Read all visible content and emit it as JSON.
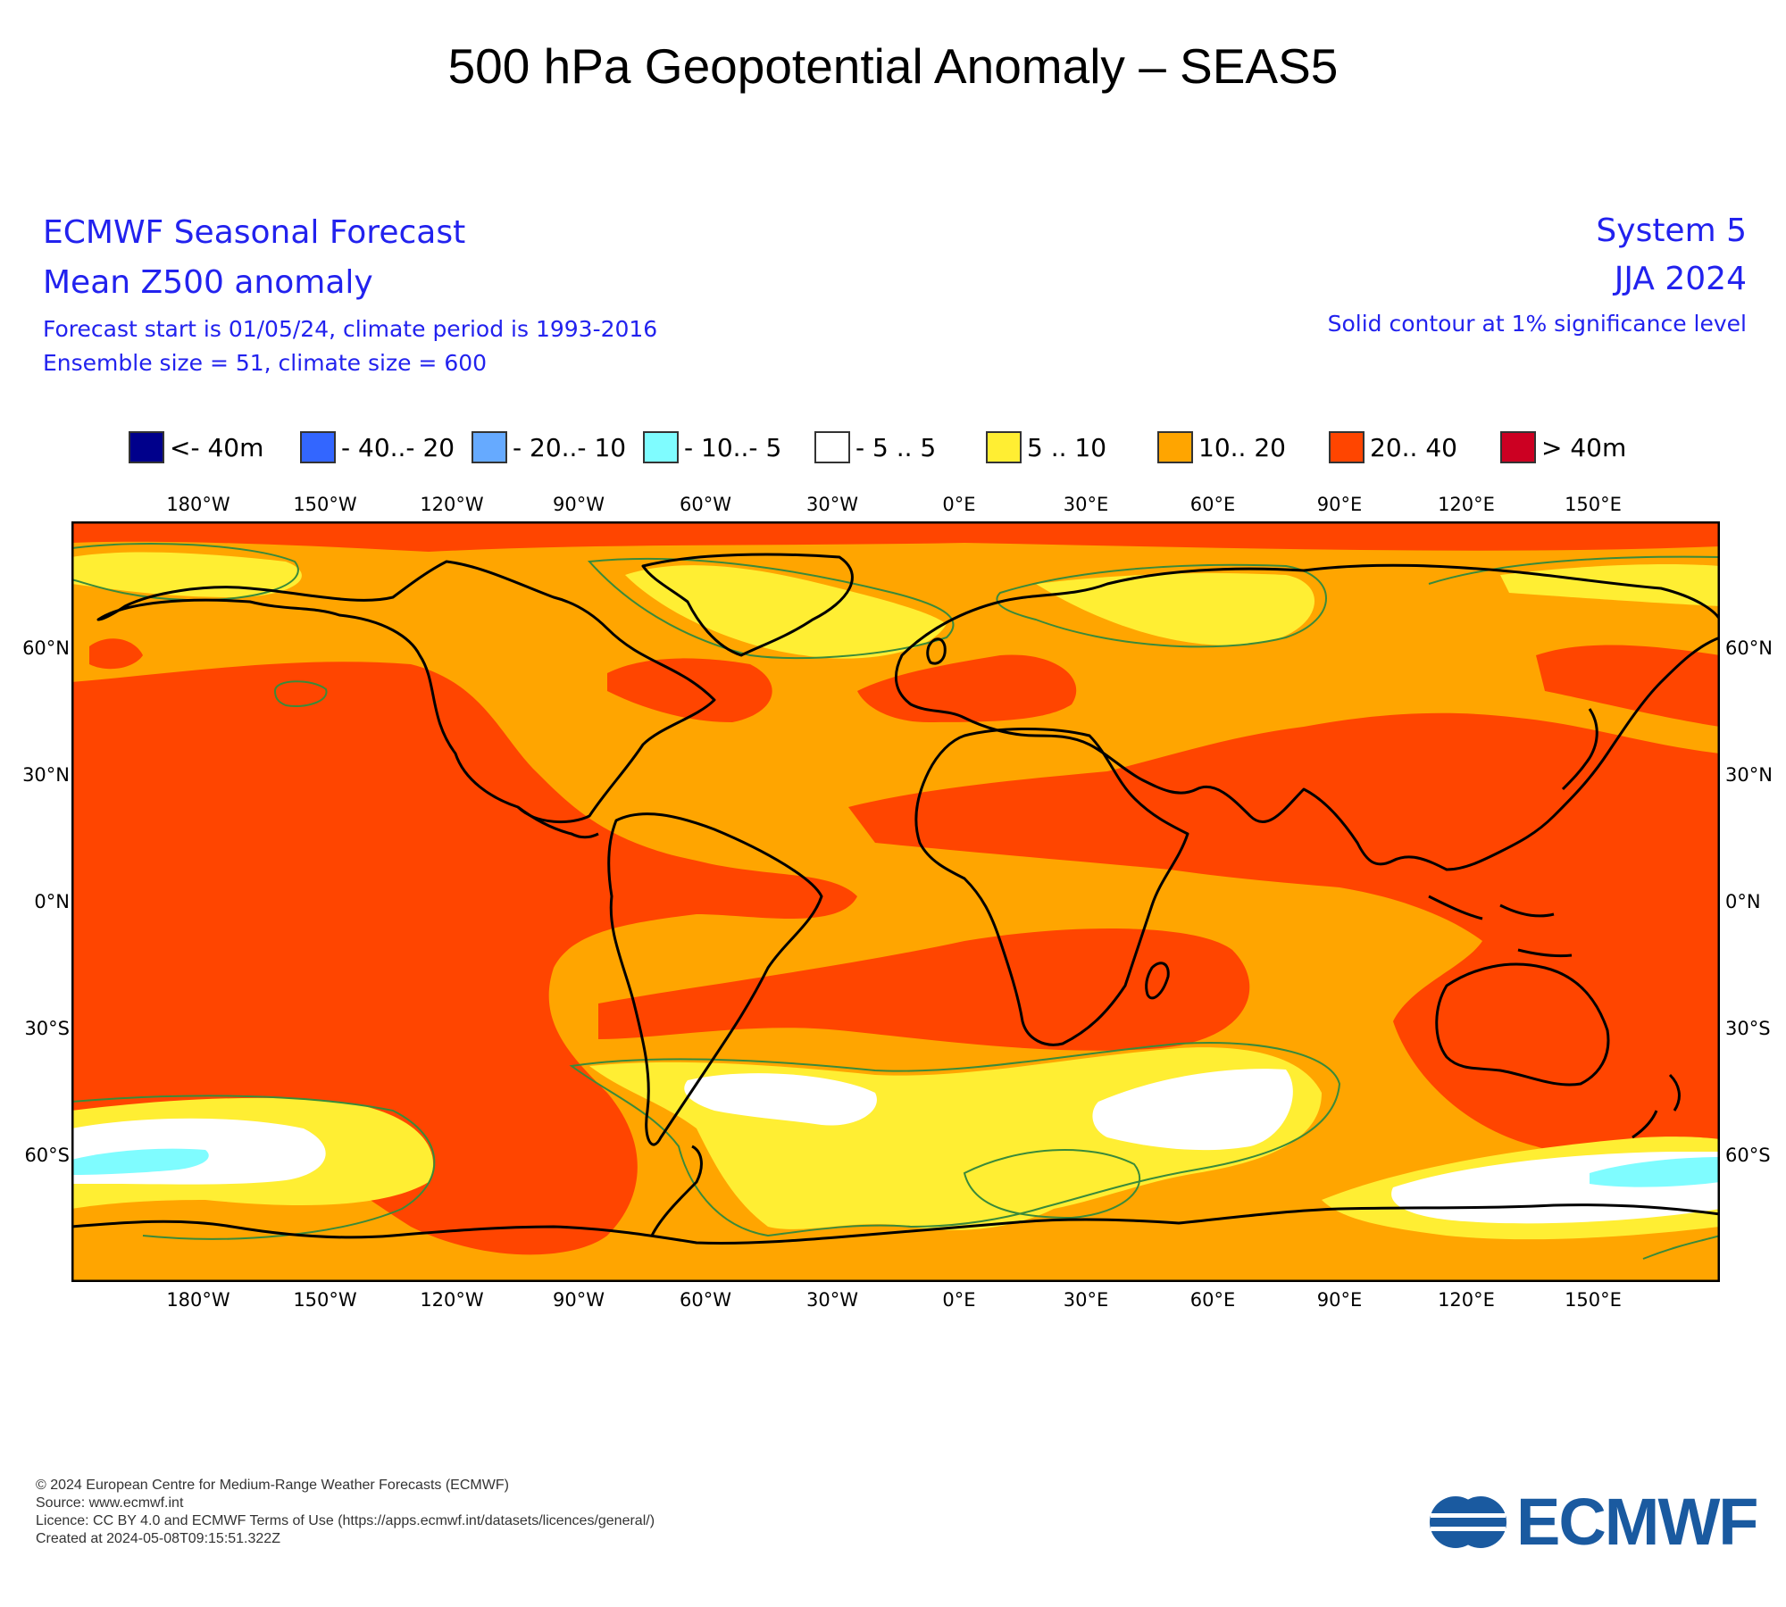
{
  "page_title": "500 hPa Geopotential Anomaly – SEAS5",
  "header": {
    "left_title": "ECMWF Seasonal Forecast",
    "left_subtitle": "Mean Z500 anomaly",
    "left_line1": "Forecast start is 01/05/24, climate period is 1993-2016",
    "left_line2": "Ensemble size = 51, climate size = 600",
    "right_title": "System 5",
    "right_subtitle": "JJA 2024",
    "right_line1": "Solid contour at 1% significance level"
  },
  "legend": {
    "items": [
      {
        "label": "<- 40m",
        "color": "#00008b"
      },
      {
        "label": "- 40..- 20",
        "color": "#3366ff"
      },
      {
        "label": "- 20..- 10",
        "color": "#66aaff"
      },
      {
        "label": "- 10..- 5",
        "color": "#7ffcff"
      },
      {
        "label": "- 5 .. 5",
        "color": "#ffffff"
      },
      {
        "label": "5 .. 10",
        "color": "#ffee33"
      },
      {
        "label": "10.. 20",
        "color": "#ffa500"
      },
      {
        "label": "20.. 40",
        "color": "#ff4500"
      },
      {
        "label": ">  40m",
        "color": "#cc0022"
      }
    ]
  },
  "axes": {
    "lon_labels": [
      "180°W",
      "150°W",
      "120°W",
      "90°W",
      "60°W",
      "30°W",
      "0°E",
      "30°E",
      "60°E",
      "90°E",
      "120°E",
      "150°E"
    ],
    "lat_labels": [
      "60°N",
      "30°N",
      "0°N",
      "30°S",
      "60°S"
    ]
  },
  "map": {
    "type": "anomaly-map",
    "projection": "equirectangular",
    "lon_range": [
      -210,
      180
    ],
    "lat_range": [
      -90,
      90
    ],
    "background_category": "10.. 20",
    "contour_color": "#3a8a3a",
    "coastline_color": "#000000"
  },
  "footer": {
    "line1": "© 2024 European Centre for Medium-Range Weather Forecasts (ECMWF)",
    "line2": "Source: www.ecmwf.int",
    "line3": "Licence: CC BY 4.0 and ECMWF Terms of Use (https://apps.ecmwf.int/datasets/licences/general/)",
    "line4": "Created at 2024-05-08T09:15:51.322Z",
    "logo_text": "ECMWF"
  }
}
